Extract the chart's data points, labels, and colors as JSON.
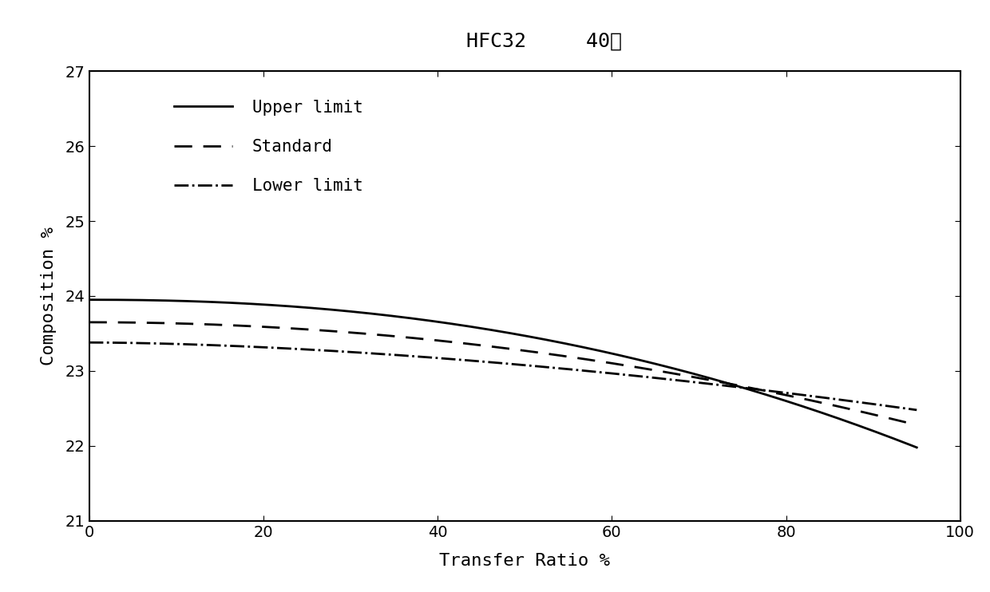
{
  "title_line1": "HFC32     40℃",
  "xlabel": "Transfer Ratio %",
  "ylabel": "Composition %",
  "xlim": [
    0,
    100
  ],
  "ylim": [
    21,
    27
  ],
  "yticks": [
    21,
    22,
    23,
    24,
    25,
    26,
    27
  ],
  "xticks": [
    0,
    20,
    40,
    60,
    80,
    100
  ],
  "upper_limit_start": 23.95,
  "upper_limit_end": 21.98,
  "standard_start": 23.65,
  "standard_end": 22.28,
  "lower_limit_start": 23.38,
  "lower_limit_end": 22.48,
  "upper_power": 2.2,
  "standard_power": 2.0,
  "lower_power": 1.7,
  "line_color": "#000000",
  "bg_color": "#ffffff",
  "legend_labels": [
    "Upper limit",
    "Standard",
    "Lower limit"
  ],
  "title_fontsize": 18,
  "label_fontsize": 16,
  "tick_fontsize": 14,
  "legend_fontsize": 15
}
